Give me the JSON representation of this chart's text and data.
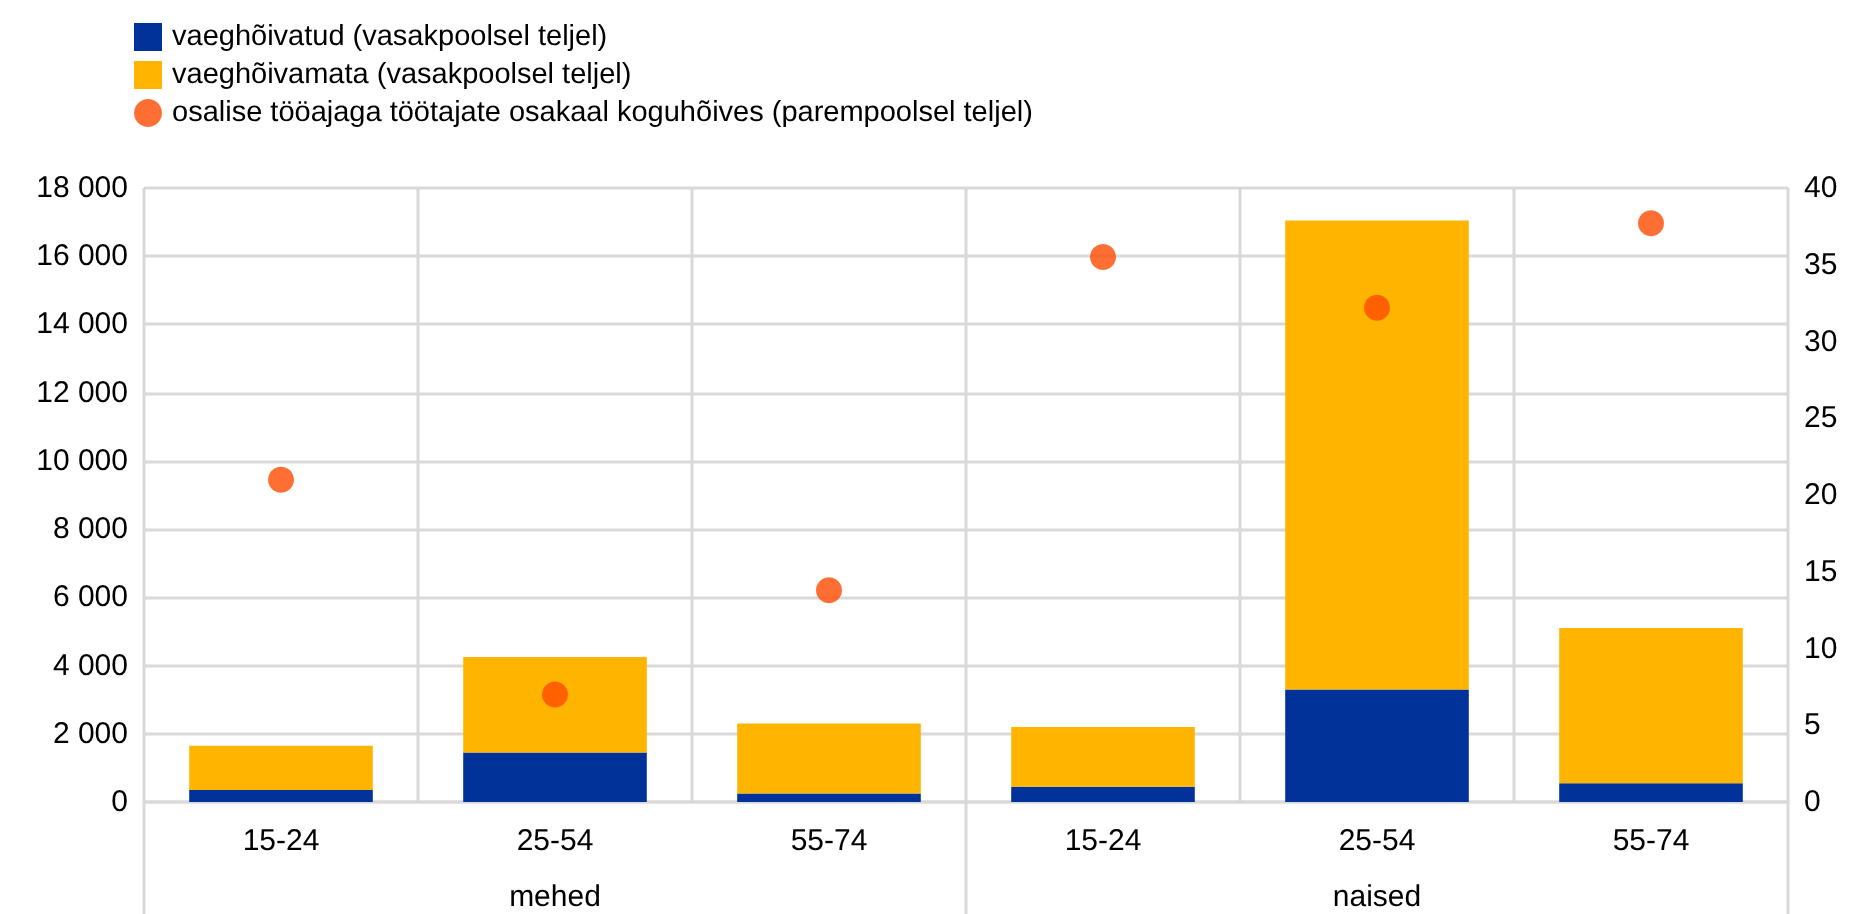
{
  "chart_data": {
    "type": "bar",
    "stacked": true,
    "categories": [
      "15-24",
      "25-54",
      "55-74",
      "15-24",
      "25-54",
      "55-74"
    ],
    "annotations": [
      "mehed",
      "naised"
    ],
    "series": [
      {
        "name": "vaeghõivatud (vasakpoolsel teljel)",
        "color": "#003299",
        "values": [
          350,
          1450,
          250,
          450,
          3300,
          550
        ]
      },
      {
        "name": "vaeghõivamata (vasakpoolsel teljel)",
        "color": "#ffb400",
        "values": [
          1300,
          2800,
          2050,
          1750,
          13750,
          4550
        ]
      },
      {
        "name": "osalise tööajaga töötajate osakaal koguhõives (parempoolsel teljel)",
        "type": "scatter",
        "axis": "y2",
        "color": "#ff4b00",
        "values": [
          21,
          7,
          13.8,
          35.5,
          32.2,
          37.7
        ]
      }
    ],
    "ylim": [
      0,
      18000
    ],
    "yticks": [
      0,
      {
        "value": 2000,
        "label": "2 000"
      },
      {
        "value": 4000,
        "label": "4 000"
      },
      {
        "value": 6000,
        "label": "6 000"
      },
      {
        "value": 8000,
        "label": "8 000"
      },
      {
        "value": 10000,
        "label": "10 000"
      },
      {
        "value": 12000,
        "label": "12 000"
      },
      {
        "value": 14000,
        "label": "14 000"
      },
      {
        "value": 16000,
        "label": "16 000"
      },
      {
        "value": 18000,
        "label": "18 000"
      }
    ],
    "y2lim": [
      0,
      40
    ],
    "y2ticks": [
      0,
      5,
      10,
      15,
      20,
      25,
      30,
      35,
      40
    ],
    "grid": true,
    "legend": "top left",
    "marker": "circle"
  }
}
